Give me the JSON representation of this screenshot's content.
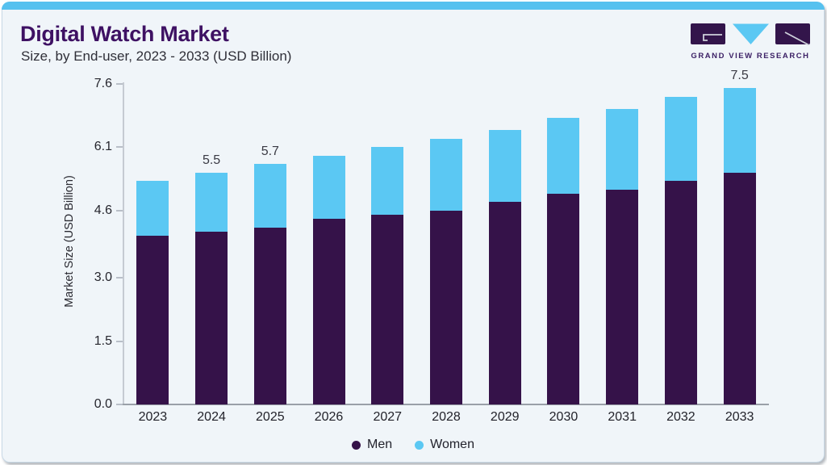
{
  "header": {
    "title": "Digital Watch Market",
    "subtitle": "Size, by End-user, 2023 - 2033 (USD Billion)"
  },
  "logo": {
    "text": "GRAND VIEW RESEARCH",
    "mark_colors": {
      "purple": "#33154B",
      "blue": "#5BC8F3"
    }
  },
  "colors": {
    "accent_strip": "#56C1EF",
    "card_background": "#F0F5F9",
    "men": "#351249",
    "women": "#5BC8F3"
  },
  "chart_data": {
    "type": "bar",
    "stacked": true,
    "title": "Digital Watch Market",
    "subtitle": "Size, by End-user, 2023 - 2033 (USD Billion)",
    "categories": [
      "2023",
      "2024",
      "2025",
      "2026",
      "2027",
      "2028",
      "2029",
      "2030",
      "2031",
      "2032",
      "2033"
    ],
    "series": [
      {
        "name": "Men",
        "color": "#351249",
        "values": [
          4.0,
          4.1,
          4.2,
          4.4,
          4.5,
          4.6,
          4.8,
          5.0,
          5.1,
          5.3,
          5.5
        ]
      },
      {
        "name": "Women",
        "color": "#5BC8F3",
        "values": [
          1.3,
          1.4,
          1.5,
          1.5,
          1.6,
          1.7,
          1.7,
          1.8,
          1.9,
          2.0,
          2.0
        ]
      }
    ],
    "totals": [
      5.3,
      5.5,
      5.7,
      5.9,
      6.1,
      6.3,
      6.5,
      6.8,
      7.0,
      7.3,
      7.5
    ],
    "annotations": [
      {
        "category": "2024",
        "label": "5.5"
      },
      {
        "category": "2025",
        "label": "5.7"
      },
      {
        "category": "2033",
        "label": "7.5"
      }
    ],
    "ylabel": "Market Size (USD Billion)",
    "xlabel": "",
    "ylim": [
      0,
      7.6
    ],
    "yticks": [
      {
        "value": 7.6,
        "label": "7.6"
      },
      {
        "value": 6.1,
        "label": "6.1"
      },
      {
        "value": 4.6,
        "label": "4.6"
      },
      {
        "value": 3.0,
        "label": "3.0"
      },
      {
        "value": 1.5,
        "label": "1.5"
      },
      {
        "value": 0.0,
        "label": "0.0"
      }
    ],
    "grid": false,
    "legend_position": "bottom-center"
  }
}
